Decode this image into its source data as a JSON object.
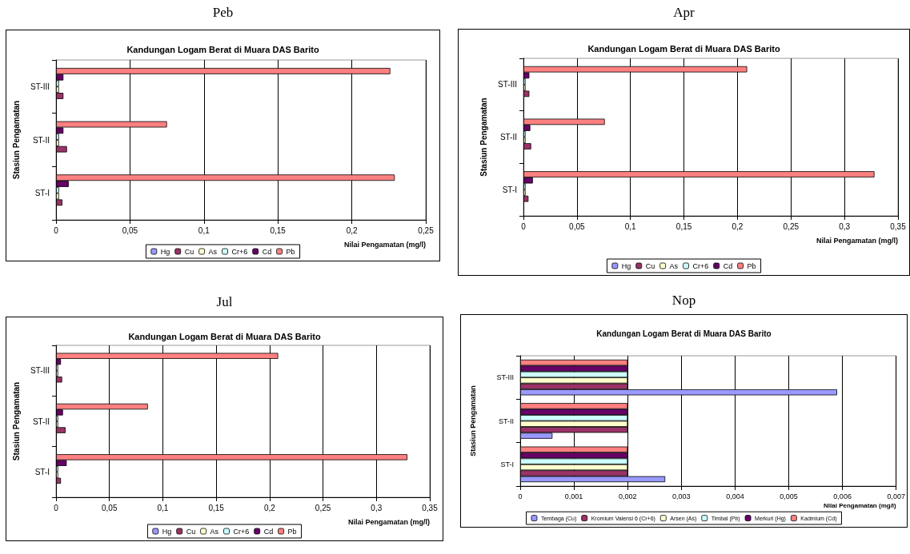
{
  "chart_data": [
    {
      "type": "bar",
      "orientation": "horizontal",
      "title": "Peb",
      "subtitle": "Kandungan Logam Berat di Muara DAS Barito",
      "xlabel": "Nilai Pengamatan (mg/l)",
      "ylabel": "Stasiun Pengamatan",
      "categories": [
        "ST-III",
        "ST-II",
        "ST-I"
      ],
      "xlim": [
        0,
        0.25
      ],
      "xticks": [
        {
          "value": 0,
          "label": "0"
        },
        {
          "value": 0.05,
          "label": "0,05"
        },
        {
          "value": 0.1,
          "label": "0,1"
        },
        {
          "value": 0.15,
          "label": "0,15"
        },
        {
          "value": 0.2,
          "label": "0,2"
        },
        {
          "value": 0.25,
          "label": "0,25"
        }
      ],
      "grid": "x",
      "legend": "bottom",
      "series": [
        {
          "name": "Hg",
          "color": "#9999ff",
          "values": [
            null,
            null,
            null
          ]
        },
        {
          "name": "Cu",
          "color": "#993366",
          "values": [
            0.005,
            0.0074,
            0.0043
          ]
        },
        {
          "name": "As",
          "color": "#ffffcc",
          "values": [
            0.002,
            0.002,
            0.002
          ]
        },
        {
          "name": "Cr+6",
          "color": "#ccffff",
          "values": [
            0.002,
            0.002,
            0.002
          ]
        },
        {
          "name": "Cd",
          "color": "#660066",
          "values": [
            0.005,
            0.005,
            0.0086
          ]
        },
        {
          "name": "Pb",
          "color": "#ff8080",
          "values": [
            0.226,
            0.075,
            0.229
          ]
        }
      ]
    },
    {
      "type": "bar",
      "orientation": "horizontal",
      "title": "Apr",
      "subtitle": "Kandungan Logam Berat di Muara DAS Barito",
      "xlabel": "Nilai Pengamatan (mg/l)",
      "ylabel": "Stasiun Pengamatan",
      "categories": [
        "ST-III",
        "ST-II",
        "ST-I"
      ],
      "xlim": [
        0,
        0.35
      ],
      "xticks": [
        {
          "value": 0,
          "label": "0"
        },
        {
          "value": 0.05,
          "label": "0,05"
        },
        {
          "value": 0.1,
          "label": "0,1"
        },
        {
          "value": 0.15,
          "label": "0,15"
        },
        {
          "value": 0.2,
          "label": "0,2"
        },
        {
          "value": 0.25,
          "label": "0,25"
        },
        {
          "value": 0.3,
          "label": "0,3"
        },
        {
          "value": 0.35,
          "label": "0,35"
        }
      ],
      "grid": "x",
      "legend": "bottom",
      "series": [
        {
          "name": "Hg",
          "color": "#9999ff",
          "values": [
            null,
            null,
            null
          ]
        },
        {
          "name": "Cu",
          "color": "#993366",
          "values": [
            0.0055,
            0.0072,
            0.0047
          ]
        },
        {
          "name": "As",
          "color": "#ffffcc",
          "values": [
            0.002,
            0.002,
            0.002
          ]
        },
        {
          "name": "Cr+6",
          "color": "#ccffff",
          "values": [
            0.002,
            0.002,
            0.002
          ]
        },
        {
          "name": "Cd",
          "color": "#660066",
          "values": [
            0.0055,
            0.0064,
            0.0088
          ]
        },
        {
          "name": "Pb",
          "color": "#ff8080",
          "values": [
            0.209,
            0.076,
            0.328
          ]
        }
      ]
    },
    {
      "type": "bar",
      "orientation": "horizontal",
      "title": "Jul",
      "subtitle": "Kandungan Logam Berat di Muara DAS Barito",
      "xlabel": "Nilai Pengamatan (mg/l)",
      "ylabel": "Stasiun Pengamatan",
      "categories": [
        "ST-III",
        "ST-II",
        "ST-I"
      ],
      "xlim": [
        0,
        0.35
      ],
      "xticks": [
        {
          "value": 0,
          "label": "0"
        },
        {
          "value": 0.05,
          "label": "0,05"
        },
        {
          "value": 0.1,
          "label": "0,1"
        },
        {
          "value": 0.15,
          "label": "0,15"
        },
        {
          "value": 0.2,
          "label": "0,2"
        },
        {
          "value": 0.25,
          "label": "0,25"
        },
        {
          "value": 0.3,
          "label": "0,3"
        },
        {
          "value": 0.35,
          "label": "0,35"
        }
      ],
      "grid": "x",
      "legend": "bottom",
      "series": [
        {
          "name": "Hg",
          "color": "#9999ff",
          "values": [
            null,
            null,
            null
          ]
        },
        {
          "name": "Cu",
          "color": "#993366",
          "values": [
            0.0057,
            0.0089,
            0.0046
          ]
        },
        {
          "name": "As",
          "color": "#ffffcc",
          "values": [
            0.002,
            0.002,
            0.002
          ]
        },
        {
          "name": "Cr+6",
          "color": "#ccffff",
          "values": [
            0.002,
            0.002,
            0.002
          ]
        },
        {
          "name": "Cd",
          "color": "#660066",
          "values": [
            0.0046,
            0.0065,
            0.01
          ]
        },
        {
          "name": "Pb",
          "color": "#ff8080",
          "values": [
            0.208,
            0.086,
            0.329
          ]
        }
      ]
    },
    {
      "type": "bar",
      "orientation": "horizontal",
      "title": "Nop",
      "subtitle": "Kandungan Logam Berat di Muara DAS Barito",
      "xlabel": "Nilai Pengamatan (mg/l)",
      "ylabel": "Stasiun Pengamatan",
      "categories": [
        "ST-III",
        "ST-II",
        "ST-I"
      ],
      "xlim": [
        0,
        0.007
      ],
      "xticks": [
        {
          "value": 0,
          "label": "0"
        },
        {
          "value": 0.001,
          "label": "0,001"
        },
        {
          "value": 0.002,
          "label": "0,002"
        },
        {
          "value": 0.003,
          "label": "0,003"
        },
        {
          "value": 0.004,
          "label": "0,004"
        },
        {
          "value": 0.005,
          "label": "0,005"
        },
        {
          "value": 0.006,
          "label": "0,006"
        },
        {
          "value": 0.007,
          "label": "0,007"
        }
      ],
      "grid": "x",
      "legend": "bottom",
      "series": [
        {
          "name": "Tembaga (Cu)",
          "color": "#9999ff",
          "values": [
            0.0059,
            0.0006,
            0.0027
          ]
        },
        {
          "name": "Kromium Valensi 6 (Cr+6)",
          "color": "#993366",
          "values": [
            0.002,
            0.002,
            0.002
          ]
        },
        {
          "name": "Arsen (As)",
          "color": "#ffffcc",
          "values": [
            0.002,
            0.002,
            0.002
          ]
        },
        {
          "name": "Timbal (Pb)",
          "color": "#ccffff",
          "values": [
            0.002,
            0.002,
            0.002
          ]
        },
        {
          "name": "Merkuri (Hg)",
          "color": "#660066",
          "values": [
            0.002,
            0.002,
            0.002
          ]
        },
        {
          "name": "Kadmium (Cd)",
          "color": "#ff8080",
          "values": [
            0.002,
            0.002,
            0.002
          ]
        }
      ]
    }
  ]
}
